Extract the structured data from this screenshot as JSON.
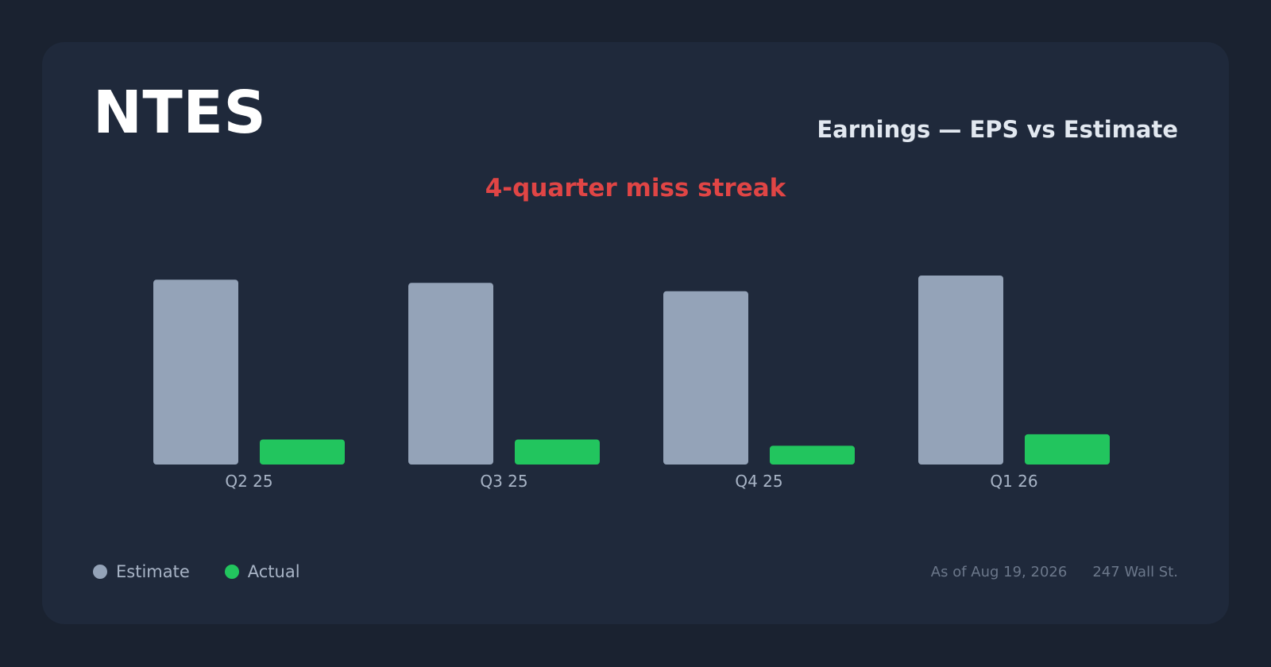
{
  "header": {
    "ticker": "NTES",
    "subtitle": "Earnings — EPS vs Estimate",
    "streak_label": "4-quarter miss streak"
  },
  "colors": {
    "estimate": "#94a3b8",
    "actual": "#22c55e",
    "streak": "#e04545",
    "card": "#1f293b",
    "background": "#1a2230"
  },
  "legend": {
    "estimate_label": "Estimate",
    "actual_label": "Actual"
  },
  "footer": {
    "as_of": "As of Aug 19, 2026",
    "source": "247 Wall St."
  },
  "chart_data": {
    "type": "bar",
    "categories": [
      "Q2 25",
      "Q3 25",
      "Q4 25",
      "Q1 26"
    ],
    "series": [
      {
        "name": "Estimate",
        "values": [
          1.77,
          1.74,
          1.66,
          1.81
        ]
      },
      {
        "name": "Actual",
        "values": [
          0.24,
          0.24,
          0.18,
          0.29
        ]
      }
    ],
    "ylim": [
      0,
      1.81
    ],
    "grid": false,
    "legend_position": "bottom-left"
  }
}
